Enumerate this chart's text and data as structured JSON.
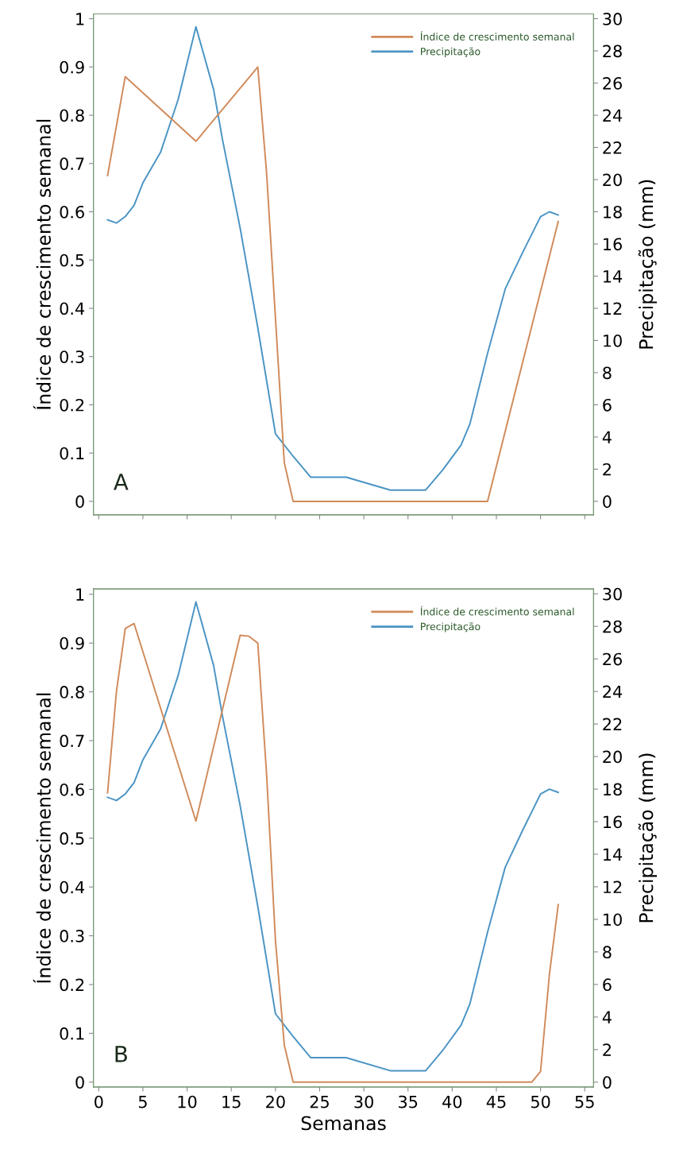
{
  "chart_data": [
    {
      "type": "line",
      "ylabel": "Índice de crescimento semanal",
      "y2label": "Precipitação (mm)",
      "annotations": [
        "A"
      ],
      "legend": "top right",
      "tick_labels": "y",
      "xlim": [
        -0.6,
        56
      ],
      "xticks": [
        0,
        5,
        10,
        15,
        20,
        25,
        30,
        35,
        40,
        45,
        50,
        55
      ],
      "ylim": [
        -0.028,
        1.01
      ],
      "yticks": [
        0,
        0.1,
        0.2,
        0.3,
        0.4,
        0.5,
        0.6,
        0.7,
        0.8,
        0.9,
        1
      ],
      "y2lim": [
        -0.84,
        30.3
      ],
      "y2ticks": [
        0,
        2,
        4,
        6,
        8,
        10,
        12,
        14,
        16,
        18,
        20,
        22,
        24,
        26,
        28,
        30
      ],
      "series": [
        {
          "name": "Índice de crescimento semanal",
          "color": "#d08a5a",
          "x": [
            1,
            3,
            11,
            18,
            19,
            21,
            22,
            44,
            52
          ],
          "values": [
            0.675,
            0.88,
            0.746,
            0.9,
            0.68,
            0.08,
            0,
            0,
            0.58
          ]
        },
        {
          "name": "Precipitação",
          "color": "#4a94c4",
          "axis": "y2",
          "x": [
            1,
            2,
            3,
            4,
            5,
            7,
            9,
            11,
            13,
            14,
            16,
            18,
            20,
            22,
            24,
            28,
            33,
            37,
            39,
            41,
            42,
            44,
            46,
            48,
            50,
            51,
            52
          ],
          "values": [
            17.5,
            17.3,
            17.7,
            18.4,
            19.8,
            21.7,
            25,
            29.5,
            25.6,
            22.5,
            17,
            10.8,
            4.2,
            2.8,
            1.5,
            1.5,
            0.7,
            0.7,
            2,
            3.5,
            4.8,
            9.2,
            13.2,
            15.5,
            17.7,
            18,
            17.8
          ]
        }
      ]
    },
    {
      "type": "line",
      "xlabel": "Semanas",
      "ylabel": "Índice de crescimento semanal",
      "y2label": "Precipitação (mm)",
      "annotations": [
        "B"
      ],
      "legend": "top right",
      "xlim": [
        -0.6,
        56
      ],
      "xticks": [
        0,
        5,
        10,
        15,
        20,
        25,
        30,
        35,
        40,
        45,
        50,
        55
      ],
      "ylim": [
        -0.01,
        1.011
      ],
      "yticks": [
        0,
        0.1,
        0.2,
        0.3,
        0.4,
        0.5,
        0.6,
        0.7,
        0.8,
        0.9,
        1
      ],
      "y2lim": [
        -0.3,
        30.3
      ],
      "y2ticks": [
        0,
        2,
        4,
        6,
        8,
        10,
        12,
        14,
        16,
        18,
        20,
        22,
        24,
        26,
        28,
        30
      ],
      "series": [
        {
          "name": "Índice de crescimento semanal",
          "color": "#d08a5a",
          "x": [
            1,
            2,
            3,
            4,
            11,
            16,
            17,
            18,
            19,
            20,
            21,
            22,
            49,
            50,
            51,
            52
          ],
          "values": [
            0.593,
            0.8,
            0.93,
            0.94,
            0.535,
            0.916,
            0.914,
            0.9,
            0.63,
            0.29,
            0.076,
            0,
            0,
            0.022,
            0.22,
            0.364
          ]
        },
        {
          "name": "Precipitação",
          "color": "#4a94c4",
          "axis": "y2",
          "x": [
            1,
            2,
            3,
            4,
            5,
            7,
            9,
            11,
            13,
            14,
            16,
            18,
            20,
            22,
            24,
            28,
            33,
            37,
            39,
            41,
            42,
            44,
            46,
            48,
            50,
            51,
            52
          ],
          "values": [
            17.5,
            17.3,
            17.7,
            18.4,
            19.8,
            21.7,
            25,
            29.5,
            25.6,
            22.5,
            17,
            10.8,
            4.2,
            2.8,
            1.5,
            1.5,
            0.7,
            0.7,
            2,
            3.5,
            4.8,
            9.2,
            13.2,
            15.5,
            17.7,
            18,
            17.8
          ]
        }
      ]
    }
  ]
}
